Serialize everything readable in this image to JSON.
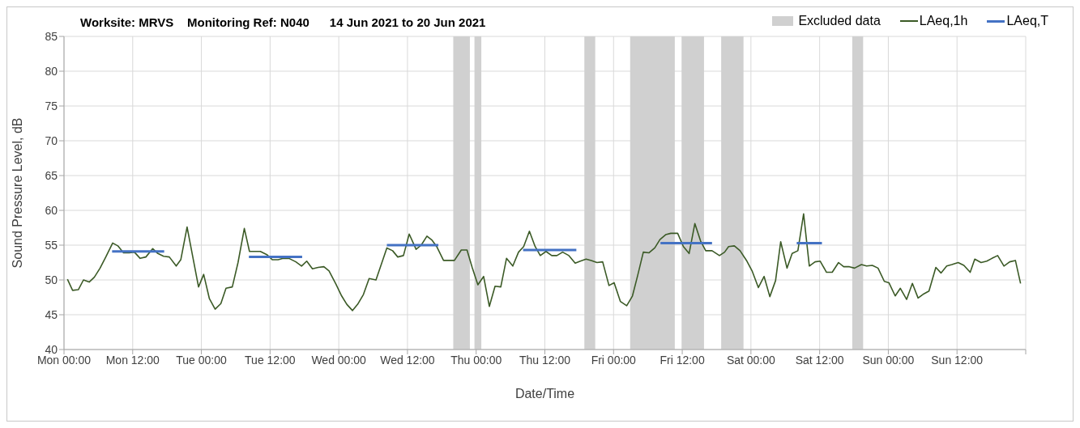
{
  "chart_data": {
    "type": "line",
    "title": "Worksite: MRVS    Monitoring Ref: N040",
    "subtitle": "14 Jun 2021 to 20 Jun 2021",
    "xlabel": "Date/Time",
    "ylabel": "Sound Pressure Level, dB",
    "xlim": [
      "2021-06-14T00:00",
      "2021-06-21T00:00"
    ],
    "ylim": [
      40,
      85
    ],
    "xticks": [
      {
        "value": "2021-06-14T00:00",
        "label": "Mon 00:00"
      },
      {
        "value": "2021-06-14T12:00",
        "label": "Mon 12:00"
      },
      {
        "value": "2021-06-15T00:00",
        "label": "Tue 00:00"
      },
      {
        "value": "2021-06-15T12:00",
        "label": "Tue 12:00"
      },
      {
        "value": "2021-06-16T00:00",
        "label": "Wed 00:00"
      },
      {
        "value": "2021-06-16T12:00",
        "label": "Wed 12:00"
      },
      {
        "value": "2021-06-17T00:00",
        "label": "Thu 00:00"
      },
      {
        "value": "2021-06-17T12:00",
        "label": "Thu 12:00"
      },
      {
        "value": "2021-06-18T00:00",
        "label": "Fri 00:00"
      },
      {
        "value": "2021-06-18T12:00",
        "label": "Fri 12:00"
      },
      {
        "value": "2021-06-19T00:00",
        "label": "Sat 00:00"
      },
      {
        "value": "2021-06-19T12:00",
        "label": "Sat 12:00"
      },
      {
        "value": "2021-06-20T00:00",
        "label": "Sun 00:00"
      },
      {
        "value": "2021-06-20T12:00",
        "label": "Sun 12:00"
      },
      {
        "value": "2021-06-21T00:00",
        "label": null
      }
    ],
    "yticks": [
      40,
      45,
      50,
      55,
      60,
      65,
      70,
      75,
      80,
      85
    ],
    "grid": true,
    "legend": "top right",
    "bands": [
      {
        "axis": "x",
        "from": "2021-06-16T20:00",
        "to": "2021-06-16T22:54",
        "label": "Excluded data",
        "color": "#d0d0d0"
      },
      {
        "axis": "x",
        "from": "2021-06-16T23:42",
        "to": "2021-06-17T00:54",
        "color": "#d0d0d0"
      },
      {
        "axis": "x",
        "from": "2021-06-17T18:54",
        "to": "2021-06-17T20:48",
        "color": "#d0d0d0"
      },
      {
        "axis": "x",
        "from": "2021-06-18T02:54",
        "to": "2021-06-18T10:42",
        "color": "#d0d0d0"
      },
      {
        "axis": "x",
        "from": "2021-06-18T11:54",
        "to": "2021-06-18T15:48",
        "color": "#d0d0d0"
      },
      {
        "axis": "x",
        "from": "2021-06-18T18:48",
        "to": "2021-06-18T22:42",
        "color": "#d0d0d0"
      },
      {
        "axis": "x",
        "from": "2021-06-19T17:42",
        "to": "2021-06-19T19:36",
        "color": "#d0d0d0"
      }
    ],
    "series": [
      {
        "name": "LAeq,1h",
        "color": "#3b5a26",
        "x": [
          "2021-06-14T00:36",
          "2021-06-14T01:30",
          "2021-06-14T02:30",
          "2021-06-14T03:24",
          "2021-06-14T04:24",
          "2021-06-14T05:18",
          "2021-06-14T06:18",
          "2021-06-14T07:18",
          "2021-06-14T08:30",
          "2021-06-14T09:24",
          "2021-06-14T10:24",
          "2021-06-14T11:24",
          "2021-06-14T12:18",
          "2021-06-14T13:18",
          "2021-06-14T14:18",
          "2021-06-14T15:30",
          "2021-06-14T16:24",
          "2021-06-14T17:24",
          "2021-06-14T18:24",
          "2021-06-14T19:36",
          "2021-06-14T20:24",
          "2021-06-14T21:30",
          "2021-06-14T22:30",
          "2021-06-14T23:30",
          "2021-06-15T00:24",
          "2021-06-15T01:24",
          "2021-06-15T02:24",
          "2021-06-15T03:24",
          "2021-06-15T04:18",
          "2021-06-15T05:24",
          "2021-06-15T06:24",
          "2021-06-15T07:30",
          "2021-06-15T08:24",
          "2021-06-15T09:24",
          "2021-06-15T10:18",
          "2021-06-15T11:30",
          "2021-06-15T12:24",
          "2021-06-15T13:24",
          "2021-06-15T14:18",
          "2021-06-15T15:18",
          "2021-06-15T16:30",
          "2021-06-15T17:30",
          "2021-06-15T18:24",
          "2021-06-15T19:24",
          "2021-06-15T20:24",
          "2021-06-15T21:24",
          "2021-06-15T22:18",
          "2021-06-15T23:30",
          "2021-06-16T00:30",
          "2021-06-16T01:24",
          "2021-06-16T02:24",
          "2021-06-16T03:18",
          "2021-06-16T04:18",
          "2021-06-16T05:18",
          "2021-06-16T06:30",
          "2021-06-16T08:24",
          "2021-06-16T09:24",
          "2021-06-16T10:18",
          "2021-06-16T11:18",
          "2021-06-16T12:18",
          "2021-06-16T13:30",
          "2021-06-16T14:24",
          "2021-06-16T15:24",
          "2021-06-16T16:18",
          "2021-06-16T17:06",
          "2021-06-16T18:18",
          "2021-06-16T19:12",
          "2021-06-16T20:12",
          "2021-06-16T21:24",
          "2021-06-16T22:24",
          "2021-06-16T23:18",
          "2021-06-17T00:18",
          "2021-06-17T01:18",
          "2021-06-17T02:18",
          "2021-06-17T03:18",
          "2021-06-17T04:18",
          "2021-06-17T05:18",
          "2021-06-17T06:24",
          "2021-06-17T07:24",
          "2021-06-17T08:18",
          "2021-06-17T09:18",
          "2021-06-17T10:18",
          "2021-06-17T11:12",
          "2021-06-17T12:12",
          "2021-06-17T13:12",
          "2021-06-17T14:06",
          "2021-06-17T15:06",
          "2021-06-17T16:12",
          "2021-06-17T17:18",
          "2021-06-17T18:12",
          "2021-06-17T19:12",
          "2021-06-17T20:06",
          "2021-06-17T21:06",
          "2021-06-17T22:06",
          "2021-06-17T23:12",
          "2021-06-18T00:06",
          "2021-06-18T01:12",
          "2021-06-18T02:18",
          "2021-06-18T03:18",
          "2021-06-18T04:12",
          "2021-06-18T05:12",
          "2021-06-18T06:12",
          "2021-06-18T07:12",
          "2021-06-18T08:06",
          "2021-06-18T09:06",
          "2021-06-18T10:00",
          "2021-06-18T11:12",
          "2021-06-18T12:12",
          "2021-06-18T13:12",
          "2021-06-18T14:12",
          "2021-06-18T15:12",
          "2021-06-18T16:06",
          "2021-06-18T17:12",
          "2021-06-18T18:30",
          "2021-06-18T19:24",
          "2021-06-18T20:06",
          "2021-06-18T21:06",
          "2021-06-18T22:06",
          "2021-06-18T23:18",
          "2021-06-19T00:12",
          "2021-06-19T01:18",
          "2021-06-19T02:18",
          "2021-06-19T03:18",
          "2021-06-19T04:18",
          "2021-06-19T05:12",
          "2021-06-19T06:18",
          "2021-06-19T07:12",
          "2021-06-19T08:12",
          "2021-06-19T09:12",
          "2021-06-19T10:12",
          "2021-06-19T11:12",
          "2021-06-19T12:06",
          "2021-06-19T13:12",
          "2021-06-19T14:12",
          "2021-06-19T15:18",
          "2021-06-19T16:12",
          "2021-06-19T17:12",
          "2021-06-19T18:06",
          "2021-06-19T19:18",
          "2021-06-19T20:12",
          "2021-06-19T21:12",
          "2021-06-19T22:12",
          "2021-06-19T23:18",
          "2021-06-20T00:06",
          "2021-06-20T01:12",
          "2021-06-20T02:06",
          "2021-06-20T03:12",
          "2021-06-20T04:12",
          "2021-06-20T05:12",
          "2021-06-20T06:12",
          "2021-06-20T07:06",
          "2021-06-20T08:18",
          "2021-06-20T09:12",
          "2021-06-20T10:12",
          "2021-06-20T11:06",
          "2021-06-20T12:12",
          "2021-06-20T13:12",
          "2021-06-20T14:18",
          "2021-06-20T15:06",
          "2021-06-20T16:12",
          "2021-06-20T17:12",
          "2021-06-20T18:06",
          "2021-06-20T19:06",
          "2021-06-20T20:12",
          "2021-06-20T21:12",
          "2021-06-20T22:12",
          "2021-06-20T23:06"
        ],
        "values": [
          50.1,
          48.5,
          48.6,
          50.0,
          49.7,
          50.4,
          51.7,
          53.3,
          55.3,
          54.9,
          53.9,
          53.9,
          54.0,
          53.1,
          53.3,
          54.5,
          53.8,
          53.4,
          53.3,
          52.0,
          52.9,
          57.6,
          53.3,
          49.0,
          50.8,
          47.3,
          45.8,
          46.6,
          48.8,
          49.0,
          52.5,
          57.4,
          54.1,
          54.1,
          54.1,
          53.6,
          52.9,
          52.9,
          53.1,
          53.1,
          52.6,
          52.0,
          52.7,
          51.6,
          51.8,
          51.9,
          51.3,
          49.4,
          47.7,
          46.5,
          45.6,
          46.5,
          47.9,
          50.2,
          50.0,
          54.6,
          54.2,
          53.3,
          53.5,
          56.6,
          54.4,
          55.0,
          56.3,
          55.7,
          54.8,
          52.8,
          52.8,
          52.8,
          54.3,
          54.3,
          51.8,
          49.3,
          50.5,
          46.2,
          49.1,
          49.0,
          53.1,
          52.0,
          54.0,
          54.8,
          57.0,
          54.8,
          53.5,
          54.1,
          53.5,
          53.5,
          54.0,
          53.5,
          52.4,
          52.7,
          53.0,
          52.8,
          52.5,
          52.6,
          49.2,
          49.6,
          46.9,
          46.3,
          47.7,
          50.6,
          54.0,
          53.9,
          54.6,
          55.8,
          56.5,
          56.7,
          56.7,
          54.8,
          53.8,
          58.1,
          55.6,
          54.2,
          54.2,
          53.5,
          54.0,
          54.8,
          54.9,
          54.2,
          52.7,
          51.3,
          48.9,
          50.5,
          47.6,
          49.9,
          55.5,
          51.7,
          53.8,
          54.2,
          59.5,
          52.0,
          52.6,
          52.7,
          51.1,
          51.1,
          52.5,
          51.9,
          51.9,
          51.7,
          52.2,
          52.0,
          52.1,
          51.7,
          49.8,
          49.6,
          47.7,
          48.8,
          47.2,
          49.5,
          47.4,
          48.0,
          48.4,
          51.8,
          51.0,
          52.0,
          52.2,
          52.5,
          52.1,
          51.1,
          53.0,
          52.5,
          52.7,
          53.1,
          53.5,
          52.0,
          52.6,
          52.8,
          49.5
        ]
      },
      {
        "name": "LAeq,T",
        "color": "#4472c4",
        "x": [
          "2021-06-14T08:24",
          "2021-06-14T17:30",
          "2021-06-15T01:00",
          "2021-06-15T08:18",
          "2021-06-15T17:36",
          "2021-06-16T02:00",
          "2021-06-16T08:24",
          "2021-06-16T17:24",
          "2021-06-17T01:00",
          "2021-06-17T08:12",
          "2021-06-17T17:30",
          "2021-06-18T01:00",
          "2021-06-18T08:12",
          "2021-06-18T17:12",
          "2021-06-19T00:00",
          "2021-06-19T08:00",
          "2021-06-19T12:24"
        ],
        "values": [
          54.1,
          54.1,
          null,
          53.3,
          53.3,
          null,
          55.0,
          55.0,
          null,
          54.3,
          54.3,
          null,
          55.3,
          55.3,
          null,
          55.3,
          55.3
        ]
      }
    ]
  }
}
